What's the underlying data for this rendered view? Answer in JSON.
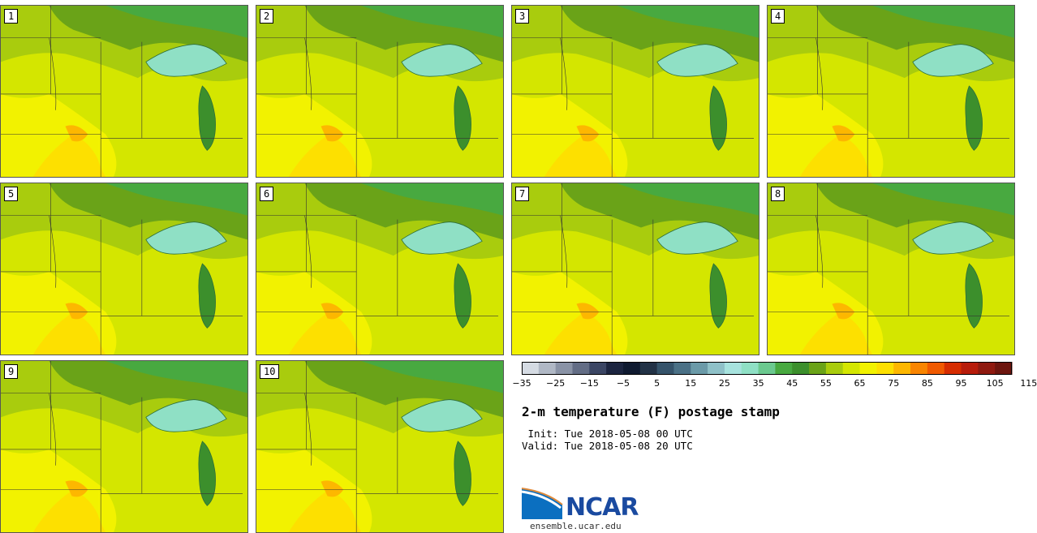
{
  "panels": [
    {
      "label": "1"
    },
    {
      "label": "2"
    },
    {
      "label": "3"
    },
    {
      "label": "4"
    },
    {
      "label": "5"
    },
    {
      "label": "6"
    },
    {
      "label": "7"
    },
    {
      "label": "8"
    },
    {
      "label": "9"
    },
    {
      "label": "10"
    }
  ],
  "colorbar": {
    "colors": [
      "#d5dbe3",
      "#b0b8c5",
      "#8a93a6",
      "#636d85",
      "#3b4664",
      "#1c2540",
      "#0f1a30",
      "#223246",
      "#35536a",
      "#4b7186",
      "#6b9aa8",
      "#8fc1c8",
      "#a7e3de",
      "#8fe0c5",
      "#6bc98f",
      "#48a940",
      "#3c8f2c",
      "#6aa318",
      "#a9cc0d",
      "#d4e600",
      "#f2f200",
      "#fde000",
      "#fdb700",
      "#f98500",
      "#f05a00",
      "#d62d00",
      "#b71c0b",
      "#8f1a10",
      "#6d160f"
    ],
    "tick_labels": [
      "−35",
      "−25",
      "−15",
      "−5",
      "5",
      "15",
      "25",
      "35",
      "45",
      "55",
      "65",
      "75",
      "85",
      "95",
      "105",
      "115"
    ]
  },
  "title": "2-m temperature (F) postage stamp",
  "init": " Init: Tue 2018-05-08 00 UTC",
  "valid": "Valid: Tue 2018-05-08 20 UTC",
  "logo": {
    "name": "NCAR",
    "url": "ensemble.ucar.edu"
  }
}
